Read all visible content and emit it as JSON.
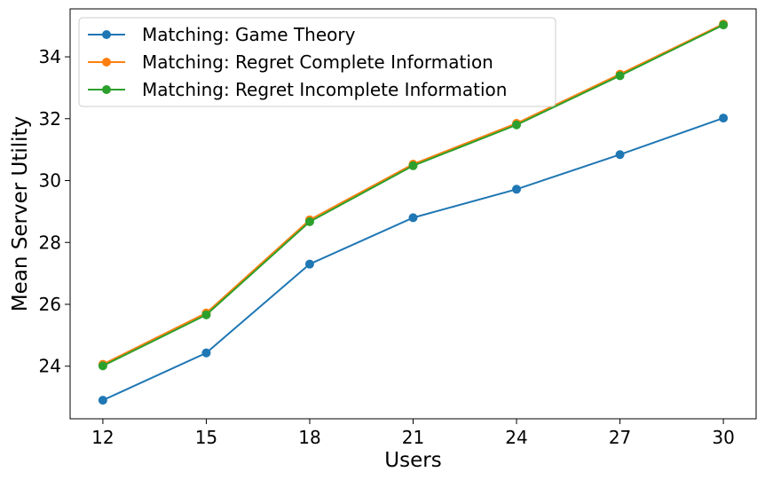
{
  "chart_data": {
    "type": "line",
    "xlabel": "Users",
    "ylabel": "Mean Server Utility",
    "x": [
      12,
      15,
      18,
      21,
      24,
      27,
      30
    ],
    "xticks": [
      "12",
      "15",
      "18",
      "21",
      "24",
      "27",
      "30"
    ],
    "yticks": [
      "24",
      "26",
      "28",
      "30",
      "32",
      "34"
    ],
    "xlim": [
      11.05,
      30.95
    ],
    "ylim": [
      22.3,
      35.55
    ],
    "grid": false,
    "legend_position": "top-left",
    "series": [
      {
        "name": "Matching: Game Theory",
        "color": "#1f77b4",
        "values": [
          22.9,
          24.43,
          27.3,
          28.8,
          29.72,
          30.84,
          32.02
        ]
      },
      {
        "name": "Matching: Regret Complete Information",
        "color": "#ff7f0e",
        "values": [
          24.06,
          25.72,
          28.73,
          30.53,
          31.85,
          33.44,
          35.06
        ]
      },
      {
        "name": "Matching: Regret Incomplete Information",
        "color": "#2ca02c",
        "values": [
          24.01,
          25.66,
          28.67,
          30.48,
          31.8,
          33.39,
          35.03
        ]
      }
    ]
  }
}
